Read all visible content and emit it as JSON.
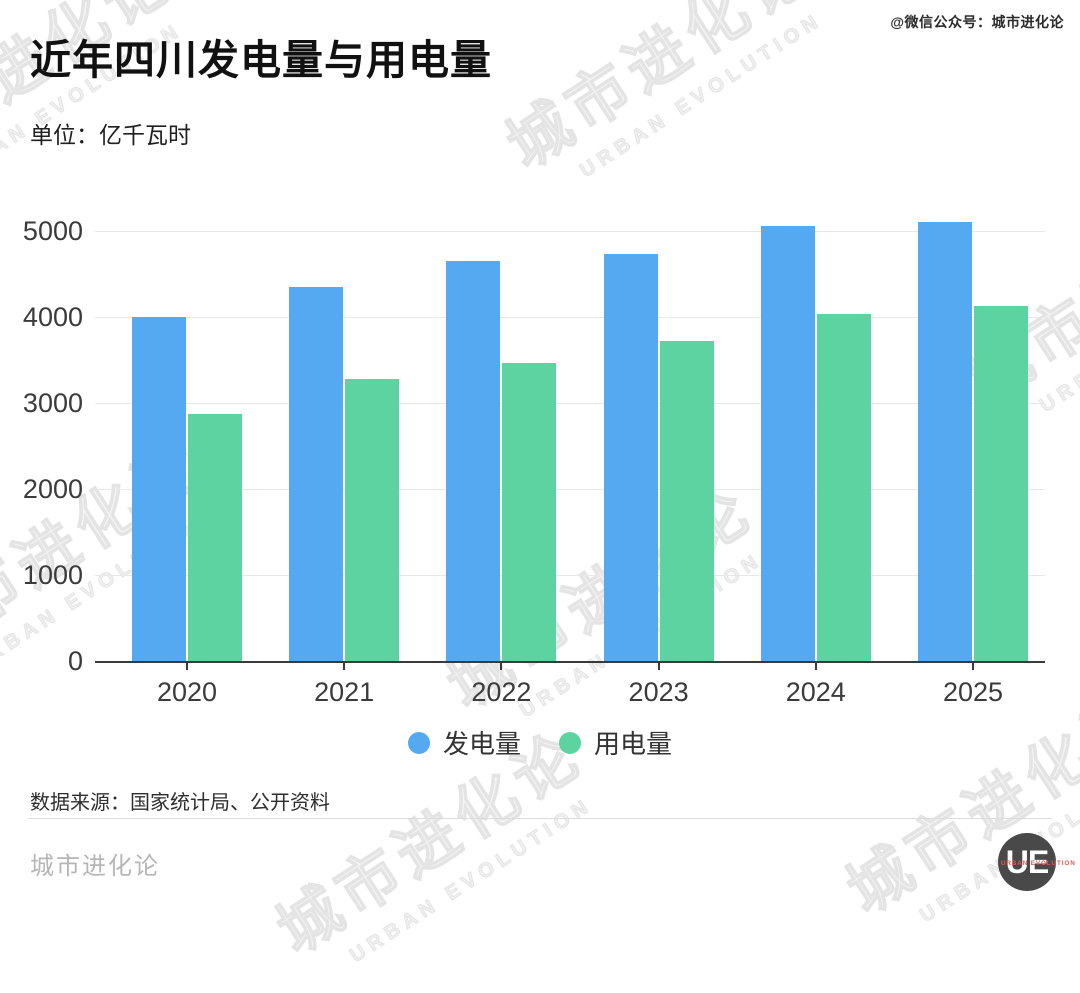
{
  "header": {
    "title": "近年四川发电量与用电量",
    "unit_label": "单位：亿千瓦时",
    "attribution": "@微信公众号：城市进化论"
  },
  "chart_data": {
    "type": "bar",
    "title": "近年四川发电量与用电量",
    "unit": "亿千瓦时",
    "categories": [
      "2020",
      "2021",
      "2022",
      "2023",
      "2024",
      "2025"
    ],
    "series": [
      {
        "name": "发电量",
        "color": "#54a9f0",
        "values": [
          4000,
          4350,
          4650,
          4730,
          5060,
          5100
        ]
      },
      {
        "name": "用电量",
        "color": "#5ed3a2",
        "values": [
          2870,
          3280,
          3460,
          3720,
          4030,
          4130
        ]
      }
    ],
    "xlabel": "",
    "ylabel": "",
    "ylim": [
      0,
      5000
    ],
    "yticks": [
      0,
      1000,
      2000,
      3000,
      4000,
      5000
    ],
    "grid": "horizontal",
    "legend_position": "bottom"
  },
  "footer": {
    "source": "数据来源：国家统计局、公开资料",
    "brand": "城市进化论",
    "logo_letters": "UE",
    "logo_subtext": "URBAN EVOLUTION"
  },
  "watermark": {
    "cn": "城市进化论",
    "en": "URBAN EVOLUTION"
  }
}
